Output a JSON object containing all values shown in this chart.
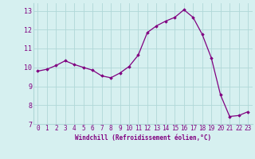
{
  "x": [
    0,
    1,
    2,
    3,
    4,
    5,
    6,
    7,
    8,
    9,
    10,
    11,
    12,
    13,
    14,
    15,
    16,
    17,
    18,
    19,
    20,
    21,
    22,
    23
  ],
  "y": [
    9.8,
    9.9,
    10.1,
    10.35,
    10.15,
    10.0,
    9.85,
    9.55,
    9.45,
    9.7,
    10.05,
    10.65,
    11.85,
    12.2,
    12.45,
    12.65,
    13.05,
    12.65,
    11.75,
    10.5,
    8.55,
    7.4,
    7.45,
    7.65
  ],
  "xlim": [
    -0.5,
    23.5
  ],
  "ylim": [
    7,
    13.4
  ],
  "yticks": [
    7,
    8,
    9,
    10,
    11,
    12,
    13
  ],
  "xticks": [
    0,
    1,
    2,
    3,
    4,
    5,
    6,
    7,
    8,
    9,
    10,
    11,
    12,
    13,
    14,
    15,
    16,
    17,
    18,
    19,
    20,
    21,
    22,
    23
  ],
  "xlabel": "Windchill (Refroidissement éolien,°C)",
  "line_color": "#800080",
  "marker": "D",
  "marker_size": 1.8,
  "bg_color": "#d6f0f0",
  "grid_color": "#b0d8d8",
  "tick_color": "#800080",
  "label_color": "#800080",
  "font_family": "monospace",
  "tick_fontsize": 5.5,
  "xlabel_fontsize": 5.5,
  "ytick_fontsize": 6.0
}
